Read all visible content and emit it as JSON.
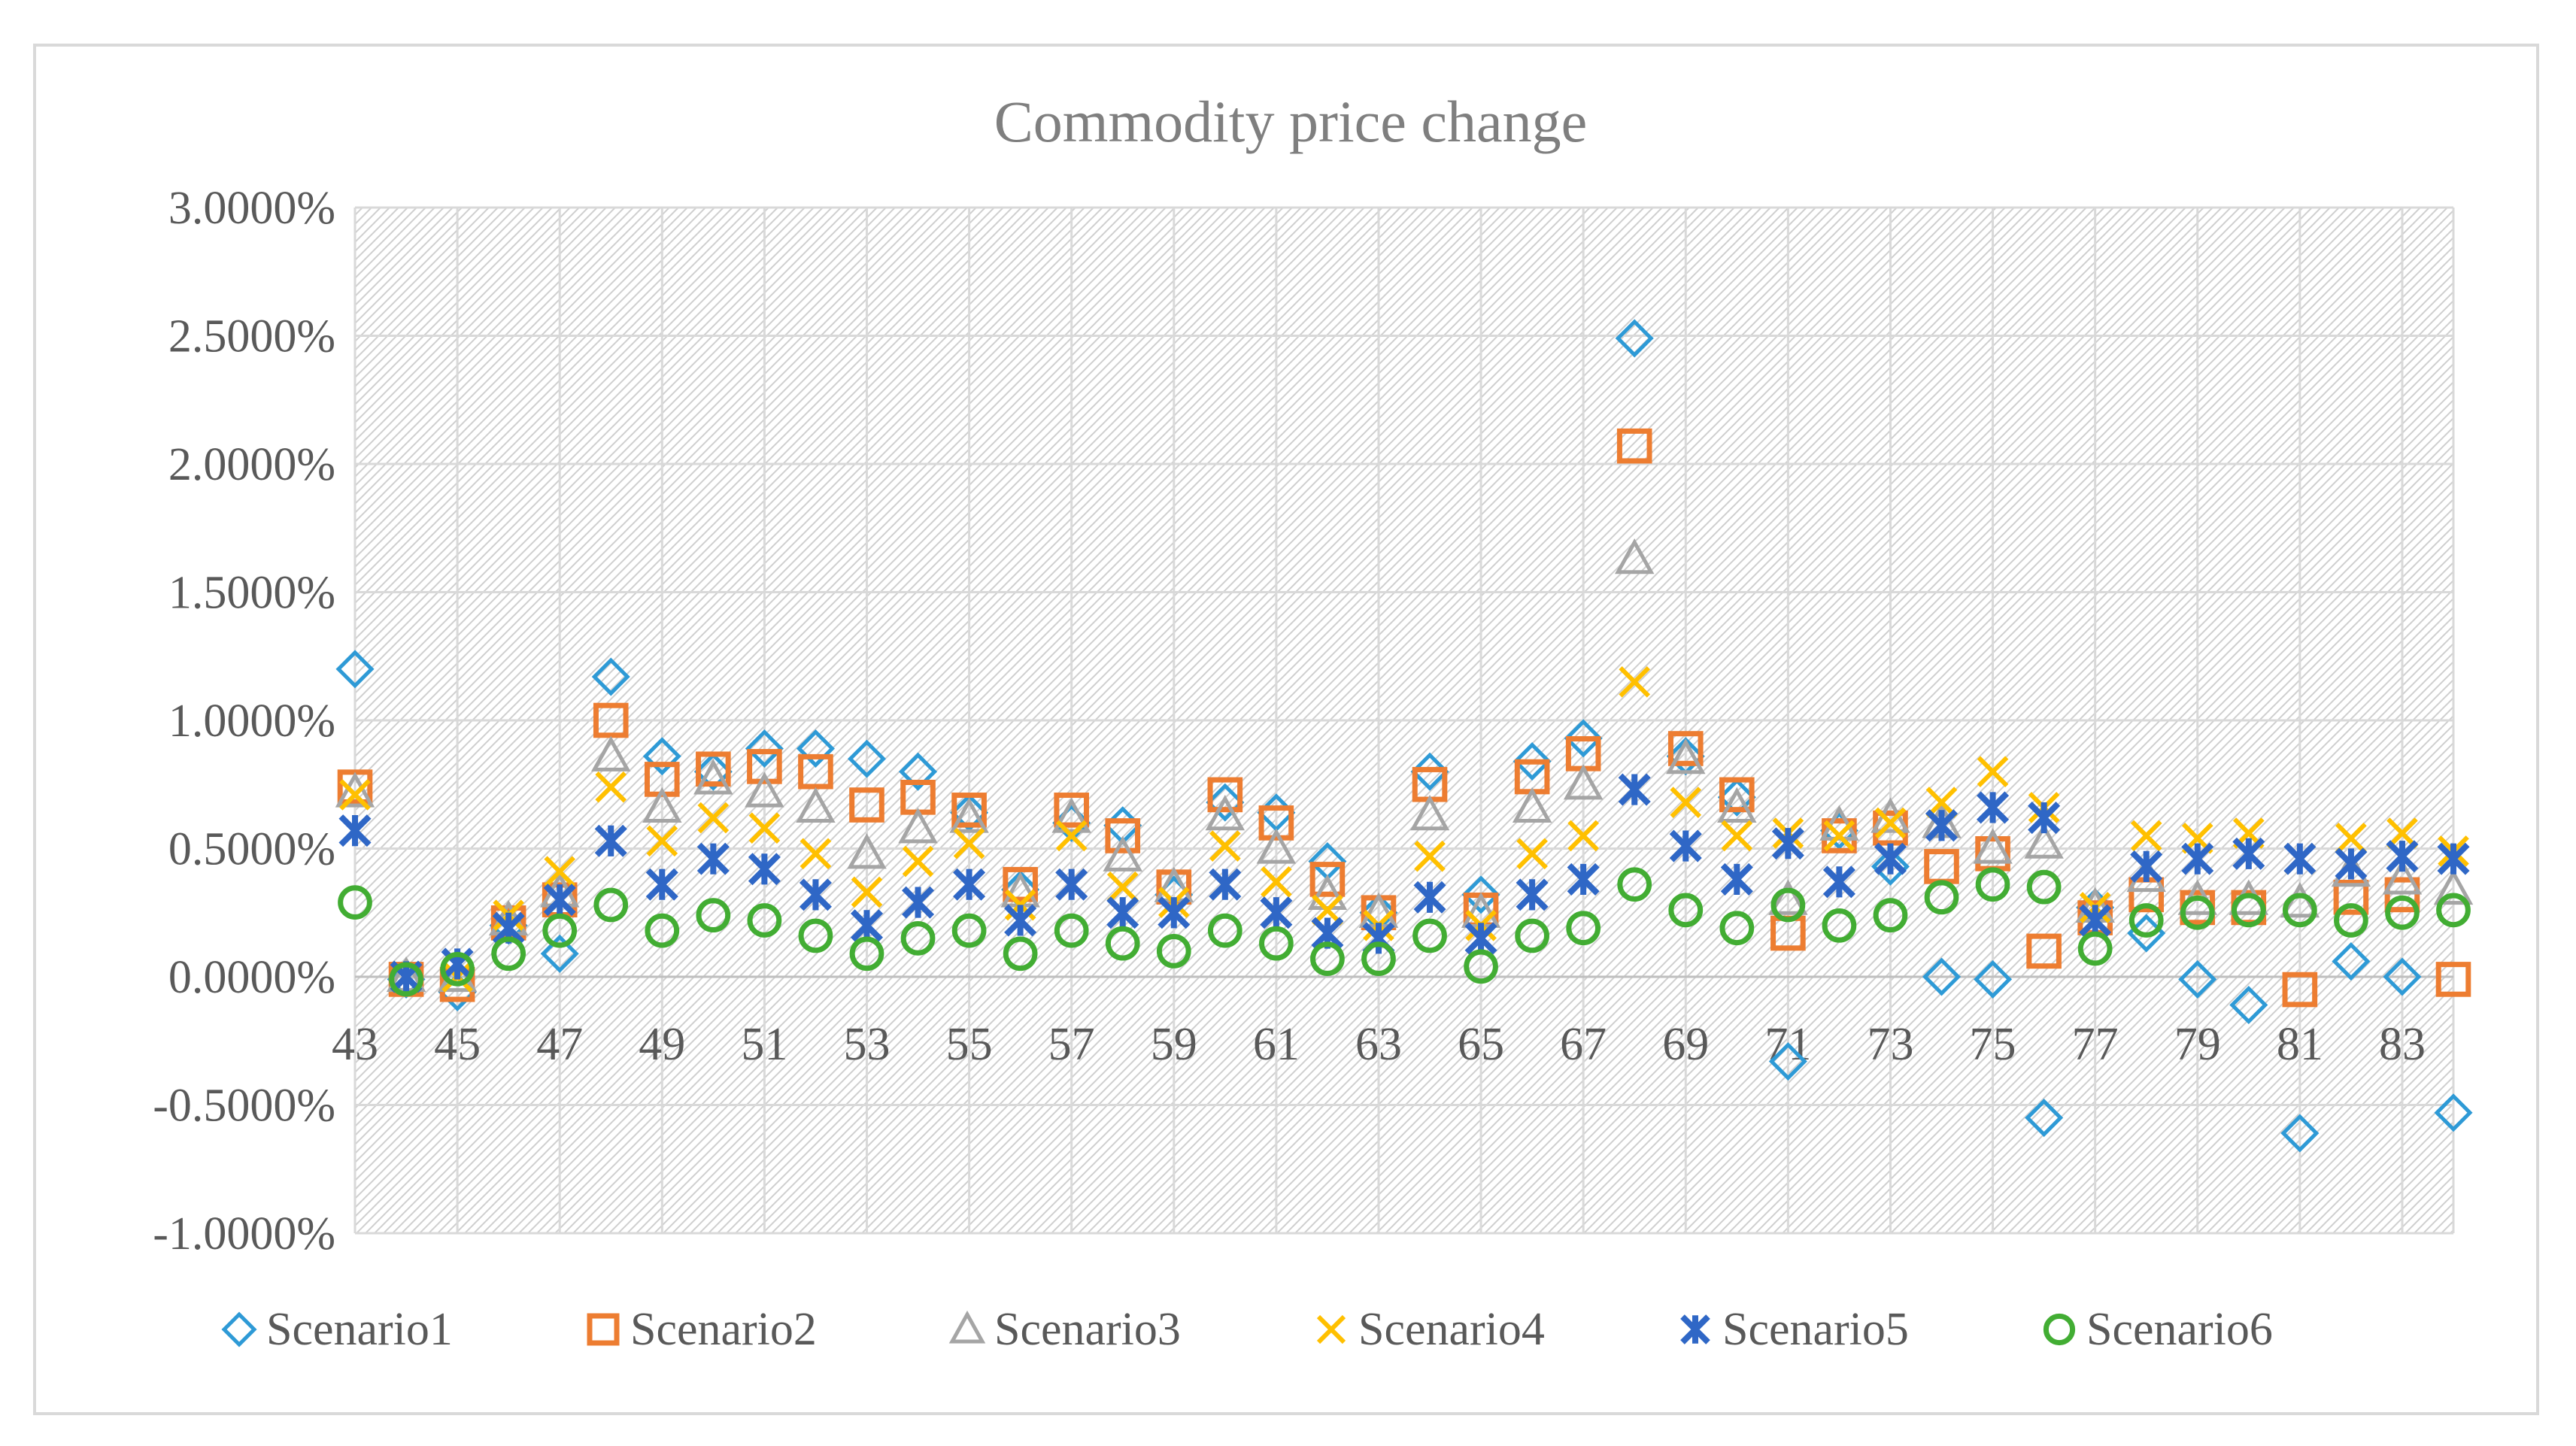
{
  "chart_data": {
    "type": "scatter",
    "title": "Commodity price change",
    "xlabel": "",
    "ylabel": "",
    "x": [
      43,
      44,
      45,
      46,
      47,
      48,
      49,
      50,
      51,
      52,
      53,
      54,
      55,
      56,
      57,
      58,
      59,
      60,
      61,
      62,
      63,
      64,
      65,
      66,
      67,
      68,
      69,
      70,
      71,
      72,
      73,
      74,
      75,
      76,
      77,
      78,
      79,
      80,
      81,
      82,
      83,
      84
    ],
    "x_tick_labels": [
      "43",
      "45",
      "47",
      "49",
      "51",
      "53",
      "55",
      "57",
      "59",
      "61",
      "63",
      "65",
      "67",
      "69",
      "71",
      "73",
      "75",
      "77",
      "79",
      "81",
      "83"
    ],
    "y_tick_labels": [
      "3.0000%",
      "2.5000%",
      "2.0000%",
      "1.5000%",
      "1.0000%",
      "0.5000%",
      "0.0000%",
      "-0.5000%",
      "-1.0000%"
    ],
    "ylim": [
      -1.0,
      3.0
    ],
    "y_unit": "%",
    "grid": true,
    "legend_position": "bottom",
    "series": [
      {
        "name": "Scenario1",
        "marker": "diamond",
        "color": "#2e9ad6",
        "values": [
          1.2,
          -0.01,
          -0.06,
          0.2,
          0.09,
          1.17,
          0.86,
          0.8,
          0.89,
          0.89,
          0.85,
          0.8,
          0.64,
          0.34,
          0.6,
          0.59,
          0.32,
          0.68,
          0.64,
          0.45,
          0.25,
          0.8,
          0.32,
          0.84,
          0.93,
          2.49,
          0.86,
          0.7,
          -0.33,
          0.57,
          0.43,
          0.0,
          -0.01,
          -0.55,
          0.27,
          0.17,
          -0.01,
          -0.11,
          -0.61,
          0.06,
          0.0,
          -0.53
        ]
      },
      {
        "name": "Scenario2",
        "marker": "square",
        "color": "#ed7d31",
        "values": [
          0.74,
          -0.01,
          -0.03,
          0.21,
          0.3,
          1.0,
          0.77,
          0.81,
          0.82,
          0.8,
          0.67,
          0.7,
          0.65,
          0.36,
          0.65,
          0.55,
          0.35,
          0.71,
          0.6,
          0.38,
          0.25,
          0.75,
          0.26,
          0.78,
          0.87,
          2.07,
          0.89,
          0.71,
          0.17,
          0.55,
          0.58,
          0.43,
          0.48,
          0.1,
          0.23,
          0.32,
          0.27,
          0.27,
          -0.05,
          0.31,
          0.32,
          -0.01
        ]
      },
      {
        "name": "Scenario3",
        "marker": "triangle",
        "color": "#a5a5a5",
        "values": [
          0.72,
          0.0,
          0.0,
          0.22,
          0.33,
          0.86,
          0.66,
          0.77,
          0.72,
          0.66,
          0.48,
          0.58,
          0.62,
          0.33,
          0.62,
          0.47,
          0.35,
          0.63,
          0.5,
          0.32,
          0.25,
          0.63,
          0.25,
          0.66,
          0.75,
          1.63,
          0.85,
          0.66,
          0.3,
          0.59,
          0.62,
          0.6,
          0.5,
          0.52,
          0.27,
          0.39,
          0.3,
          0.3,
          0.29,
          0.41,
          0.38,
          0.34
        ]
      },
      {
        "name": "Scenario4",
        "marker": "x",
        "color": "#ffc000",
        "values": [
          0.71,
          0.0,
          0.0,
          0.24,
          0.41,
          0.74,
          0.53,
          0.62,
          0.58,
          0.48,
          0.33,
          0.45,
          0.52,
          0.28,
          0.55,
          0.35,
          0.29,
          0.51,
          0.37,
          0.26,
          0.2,
          0.47,
          0.2,
          0.48,
          0.55,
          1.15,
          0.68,
          0.55,
          0.56,
          0.55,
          0.6,
          0.68,
          0.8,
          0.66,
          0.27,
          0.55,
          0.54,
          0.56,
          0.46,
          0.54,
          0.56,
          0.49
        ]
      },
      {
        "name": "Scenario5",
        "marker": "asterisk",
        "color": "#2f67c6",
        "values": [
          0.57,
          0.0,
          0.05,
          0.19,
          0.3,
          0.53,
          0.36,
          0.46,
          0.42,
          0.32,
          0.2,
          0.29,
          0.36,
          0.22,
          0.36,
          0.25,
          0.25,
          0.36,
          0.25,
          0.17,
          0.15,
          0.31,
          0.15,
          0.32,
          0.38,
          0.73,
          0.51,
          0.38,
          0.52,
          0.37,
          0.46,
          0.59,
          0.66,
          0.62,
          0.22,
          0.43,
          0.46,
          0.48,
          0.46,
          0.44,
          0.47,
          0.46
        ]
      },
      {
        "name": "Scenario6",
        "marker": "circle",
        "color": "#42ad33",
        "values": [
          0.29,
          -0.01,
          0.03,
          0.09,
          0.18,
          0.28,
          0.18,
          0.24,
          0.22,
          0.16,
          0.09,
          0.15,
          0.18,
          0.09,
          0.18,
          0.13,
          0.1,
          0.18,
          0.13,
          0.07,
          0.07,
          0.16,
          0.04,
          0.16,
          0.19,
          0.36,
          0.26,
          0.19,
          0.28,
          0.2,
          0.24,
          0.31,
          0.36,
          0.35,
          0.11,
          0.22,
          0.25,
          0.26,
          0.26,
          0.22,
          0.25,
          0.26
        ]
      }
    ]
  }
}
